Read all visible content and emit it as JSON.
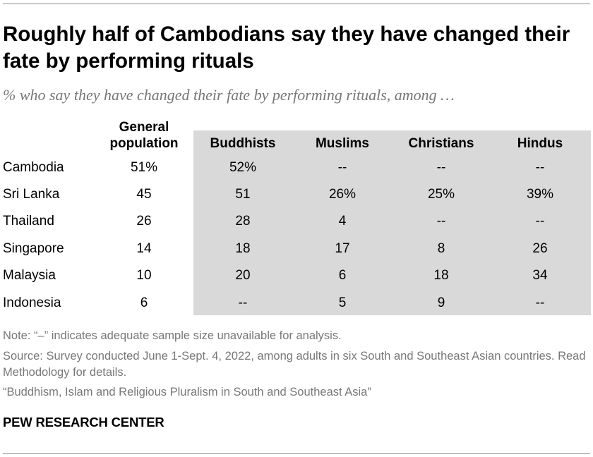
{
  "title": "Roughly half of Cambodians say they have changed their fate by performing rituals",
  "subtitle": "% who say they have changed their fate by performing rituals, among …",
  "chart_data": {
    "type": "table",
    "columns": [
      {
        "line1": "General",
        "line2": "population"
      },
      {
        "line1": "",
        "line2": "Buddhists"
      },
      {
        "line1": "",
        "line2": "Muslims"
      },
      {
        "line1": "",
        "line2": "Christians"
      },
      {
        "line1": "",
        "line2": "Hindus"
      }
    ],
    "rows": [
      {
        "label": "Cambodia",
        "cells": [
          "51%",
          "52%",
          "--",
          "--",
          "--"
        ]
      },
      {
        "label": "Sri Lanka",
        "cells": [
          "45",
          "51",
          "26%",
          "25%",
          "39%"
        ]
      },
      {
        "label": "Thailand",
        "cells": [
          "26",
          "28",
          "4",
          "--",
          "--"
        ]
      },
      {
        "label": "Singapore",
        "cells": [
          "14",
          "18",
          "17",
          "8",
          "26"
        ]
      },
      {
        "label": "Malaysia",
        "cells": [
          "10",
          "20",
          "6",
          "18",
          "34"
        ]
      },
      {
        "label": "Indonesia",
        "cells": [
          "6",
          "--",
          "5",
          "9",
          "--"
        ]
      }
    ]
  },
  "notes": {
    "note": "Note: “–” indicates adequate sample size unavailable for analysis.",
    "source": "Source: Survey conducted June 1-Sept. 4, 2022, among adults in six South and Southeast Asian countries. Read Methodology for details.",
    "report": "“Buddhism, Islam and Religious Pluralism in South and Southeast Asia”"
  },
  "brand": "PEW RESEARCH CENTER",
  "colors": {
    "shade": "#d9d9d9",
    "muted_text": "#777777",
    "rule": "#8a8a8a"
  }
}
